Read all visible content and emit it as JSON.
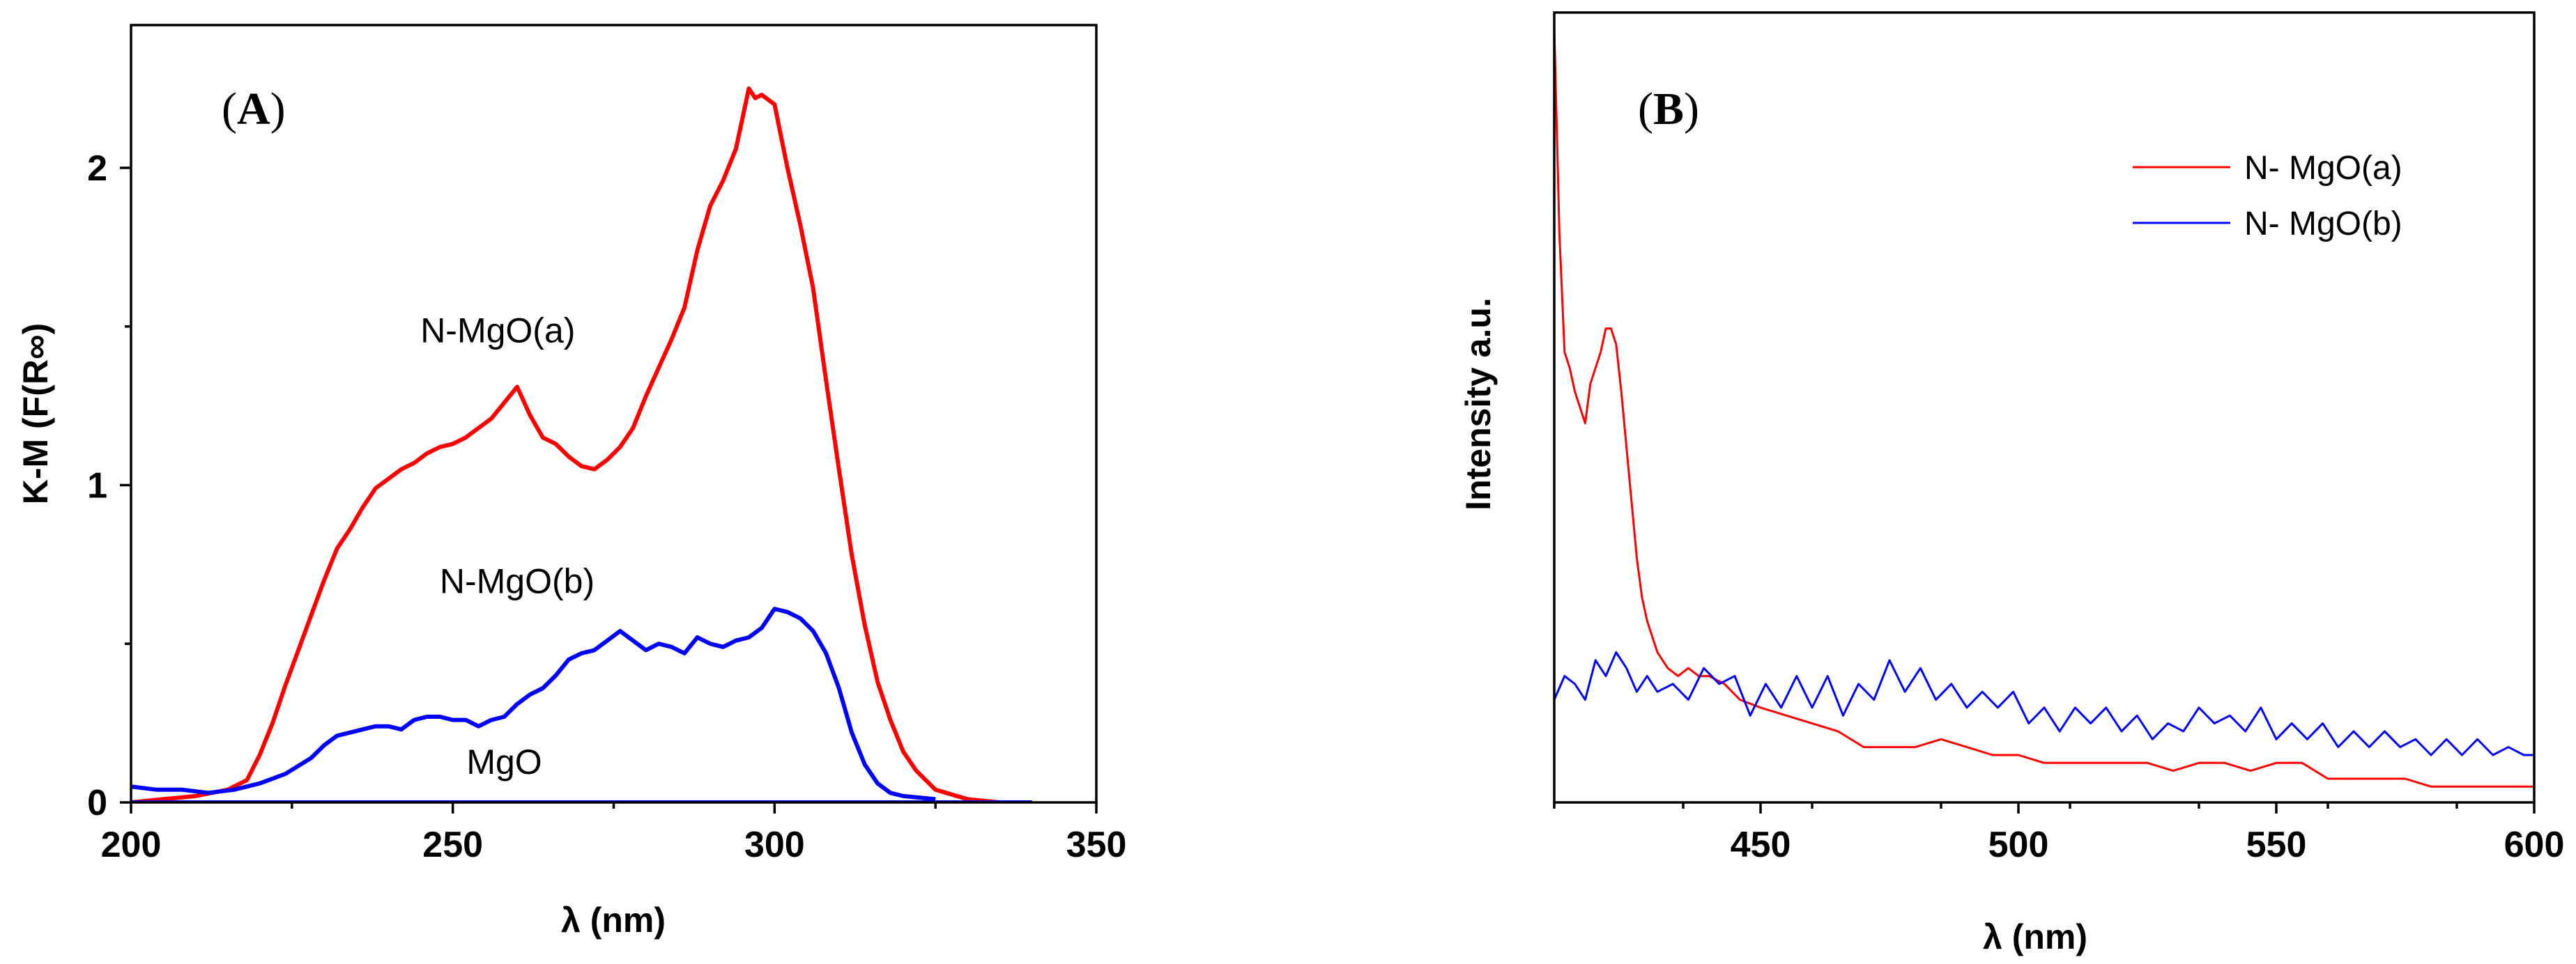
{
  "chart_data": [
    {
      "type": "line",
      "panel_label": "A",
      "xlabel": "λ (nm)",
      "ylabel": "K-M (F(R∞)",
      "xlim": [
        200,
        350
      ],
      "ylim": [
        0,
        2.45
      ],
      "xticks": [
        200,
        250,
        300,
        350
      ],
      "yticks": [
        0,
        1,
        2
      ],
      "legend": "none",
      "grid": false,
      "annotations": [
        {
          "text": "N-MgO(a)",
          "series": "N-MgO(a)",
          "x": 257,
          "y": 1.45
        },
        {
          "text": "N-MgO(b)",
          "series": "N-MgO(b)",
          "x": 260,
          "y": 0.66
        },
        {
          "text": "MgO",
          "series": "MgO",
          "x": 258,
          "y": 0.09
        }
      ],
      "series": [
        {
          "name": "N-MgO(a)",
          "color": "#ff0000",
          "x": [
            200,
            205,
            210,
            215,
            218,
            220,
            222,
            224,
            226,
            228,
            230,
            232,
            234,
            236,
            238,
            240,
            242,
            244,
            246,
            248,
            250,
            252,
            254,
            256,
            258,
            260,
            262,
            264,
            266,
            268,
            270,
            272,
            274,
            276,
            278,
            280,
            282,
            284,
            286,
            288,
            290,
            292,
            294,
            296,
            297,
            298,
            300,
            302,
            304,
            306,
            308,
            310,
            312,
            314,
            316,
            318,
            320,
            322,
            325,
            330,
            335,
            340
          ],
          "y": [
            0.0,
            0.01,
            0.02,
            0.04,
            0.07,
            0.15,
            0.25,
            0.37,
            0.48,
            0.59,
            0.7,
            0.8,
            0.86,
            0.93,
            0.99,
            1.02,
            1.05,
            1.07,
            1.1,
            1.12,
            1.13,
            1.15,
            1.18,
            1.21,
            1.26,
            1.31,
            1.22,
            1.15,
            1.13,
            1.09,
            1.06,
            1.05,
            1.08,
            1.12,
            1.18,
            1.28,
            1.37,
            1.46,
            1.56,
            1.74,
            1.88,
            1.96,
            2.06,
            2.25,
            2.22,
            2.23,
            2.2,
            2.0,
            1.82,
            1.62,
            1.33,
            1.05,
            0.78,
            0.56,
            0.38,
            0.26,
            0.16,
            0.1,
            0.04,
            0.01,
            0.0,
            0.0
          ]
        },
        {
          "name": "N-MgO(b)",
          "color": "#0000ff",
          "x": [
            200,
            204,
            208,
            212,
            216,
            220,
            224,
            228,
            230,
            232,
            234,
            236,
            238,
            240,
            242,
            244,
            246,
            248,
            250,
            252,
            254,
            256,
            258,
            260,
            262,
            264,
            266,
            268,
            270,
            272,
            274,
            276,
            278,
            280,
            282,
            284,
            286,
            288,
            290,
            292,
            294,
            296,
            298,
            300,
            302,
            304,
            306,
            308,
            310,
            312,
            314,
            316,
            318,
            320,
            325
          ],
          "y": [
            0.05,
            0.04,
            0.04,
            0.03,
            0.04,
            0.06,
            0.09,
            0.14,
            0.18,
            0.21,
            0.22,
            0.23,
            0.24,
            0.24,
            0.23,
            0.26,
            0.27,
            0.27,
            0.26,
            0.26,
            0.24,
            0.26,
            0.27,
            0.31,
            0.34,
            0.36,
            0.4,
            0.45,
            0.47,
            0.48,
            0.51,
            0.54,
            0.51,
            0.48,
            0.5,
            0.49,
            0.47,
            0.52,
            0.5,
            0.49,
            0.51,
            0.52,
            0.55,
            0.61,
            0.6,
            0.58,
            0.54,
            0.47,
            0.36,
            0.22,
            0.12,
            0.06,
            0.03,
            0.02,
            0.01
          ]
        },
        {
          "name": "MgO",
          "color": "#0000ff",
          "x": [
            200,
            210,
            220,
            230,
            240,
            250,
            260,
            270,
            280,
            290,
            300,
            310,
            320,
            330,
            340
          ],
          "y": [
            0.0,
            0.0,
            0.0,
            0.0,
            0.0,
            0.0,
            0.0,
            0.0,
            0.0,
            0.0,
            0.0,
            0.0,
            0.0,
            0.0,
            0.0
          ]
        }
      ]
    },
    {
      "type": "line",
      "panel_label": "B",
      "xlabel": "λ (nm)",
      "ylabel": "Intensity a.u.",
      "xlim": [
        410,
        600
      ],
      "ylim": [
        0,
        1
      ],
      "xticks": [
        450,
        500,
        550,
        600
      ],
      "yticks": [],
      "legend": "top-right",
      "grid": false,
      "series": [
        {
          "name": "N- MgO(a)",
          "color": "#ff0000",
          "x": [
            410,
            411,
            412,
            413,
            414,
            415,
            416,
            417,
            418,
            419,
            420,
            421,
            422,
            423,
            424,
            425,
            426,
            427,
            428,
            429,
            430,
            432,
            434,
            436,
            438,
            440,
            443,
            446,
            450,
            455,
            460,
            465,
            470,
            475,
            480,
            485,
            490,
            495,
            500,
            505,
            510,
            515,
            520,
            525,
            530,
            535,
            540,
            545,
            550,
            555,
            560,
            565,
            570,
            575,
            580,
            585,
            590,
            595,
            600
          ],
          "y": [
            0.98,
            0.72,
            0.57,
            0.55,
            0.52,
            0.5,
            0.48,
            0.53,
            0.55,
            0.57,
            0.6,
            0.6,
            0.58,
            0.52,
            0.45,
            0.38,
            0.31,
            0.26,
            0.23,
            0.21,
            0.19,
            0.17,
            0.16,
            0.17,
            0.16,
            0.16,
            0.15,
            0.13,
            0.12,
            0.11,
            0.1,
            0.09,
            0.07,
            0.07,
            0.07,
            0.08,
            0.07,
            0.06,
            0.06,
            0.05,
            0.05,
            0.05,
            0.05,
            0.05,
            0.04,
            0.05,
            0.05,
            0.04,
            0.05,
            0.05,
            0.03,
            0.03,
            0.03,
            0.03,
            0.02,
            0.02,
            0.02,
            0.02,
            0.02
          ]
        },
        {
          "name": "N- MgO(b)",
          "color": "#0000ff",
          "x": [
            410,
            412,
            414,
            416,
            418,
            420,
            422,
            424,
            426,
            428,
            430,
            433,
            436,
            439,
            442,
            445,
            448,
            451,
            454,
            457,
            460,
            463,
            466,
            469,
            472,
            475,
            478,
            481,
            484,
            487,
            490,
            493,
            496,
            499,
            502,
            505,
            508,
            511,
            514,
            517,
            520,
            523,
            526,
            529,
            532,
            535,
            538,
            541,
            544,
            547,
            550,
            553,
            556,
            559,
            562,
            565,
            568,
            571,
            574,
            577,
            580,
            583,
            586,
            589,
            592,
            595,
            598,
            600
          ],
          "y": [
            0.13,
            0.16,
            0.15,
            0.13,
            0.18,
            0.16,
            0.19,
            0.17,
            0.14,
            0.16,
            0.14,
            0.15,
            0.13,
            0.17,
            0.15,
            0.16,
            0.11,
            0.15,
            0.12,
            0.16,
            0.12,
            0.16,
            0.11,
            0.15,
            0.13,
            0.18,
            0.14,
            0.17,
            0.13,
            0.15,
            0.12,
            0.14,
            0.12,
            0.14,
            0.1,
            0.12,
            0.09,
            0.12,
            0.1,
            0.12,
            0.09,
            0.11,
            0.08,
            0.1,
            0.09,
            0.12,
            0.1,
            0.11,
            0.09,
            0.12,
            0.08,
            0.1,
            0.08,
            0.1,
            0.07,
            0.09,
            0.07,
            0.09,
            0.07,
            0.08,
            0.06,
            0.08,
            0.06,
            0.08,
            0.06,
            0.07,
            0.06,
            0.06
          ]
        }
      ]
    }
  ]
}
